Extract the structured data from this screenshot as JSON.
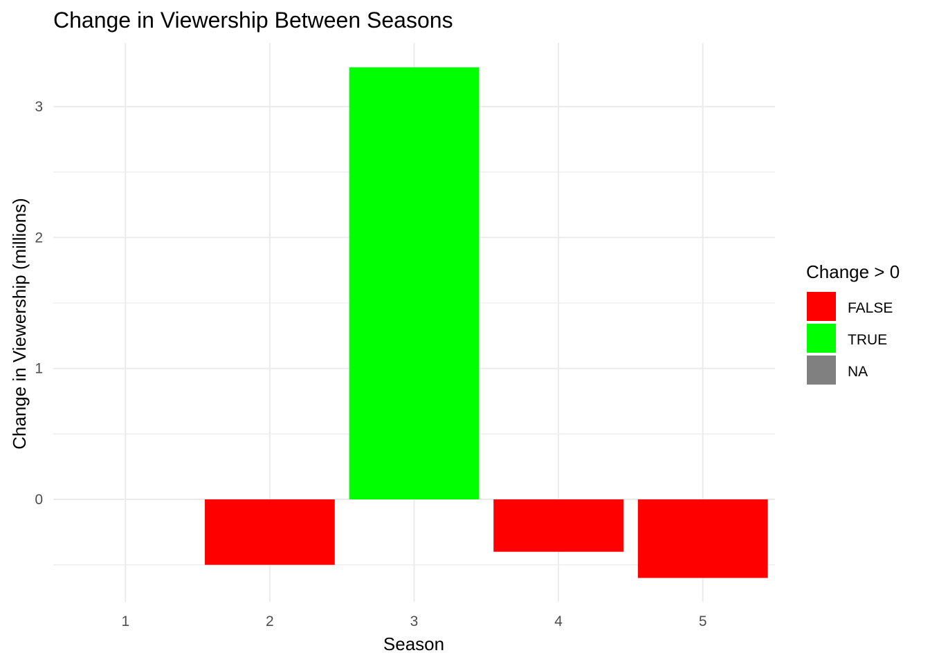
{
  "chart_data": {
    "type": "bar",
    "title": "Change in Viewership Between Seasons",
    "xlabel": "Season",
    "ylabel": "Change in Viewership (millions)",
    "categories": [
      "1",
      "2",
      "3",
      "4",
      "5"
    ],
    "values": [
      null,
      -0.5,
      3.3,
      -0.4,
      -0.6
    ],
    "positive": [
      null,
      "FALSE",
      "TRUE",
      "FALSE",
      "FALSE"
    ],
    "y_ticks": [
      "0",
      "1",
      "2",
      "3"
    ],
    "ylim": [
      -0.78,
      3.5
    ],
    "grid": true,
    "legend": {
      "title": "Change > 0",
      "position": "right",
      "entries": [
        {
          "label": "FALSE",
          "color": "#FF0000"
        },
        {
          "label": "TRUE",
          "color": "#00FF00"
        },
        {
          "label": "NA",
          "color": "#808080"
        }
      ]
    }
  }
}
